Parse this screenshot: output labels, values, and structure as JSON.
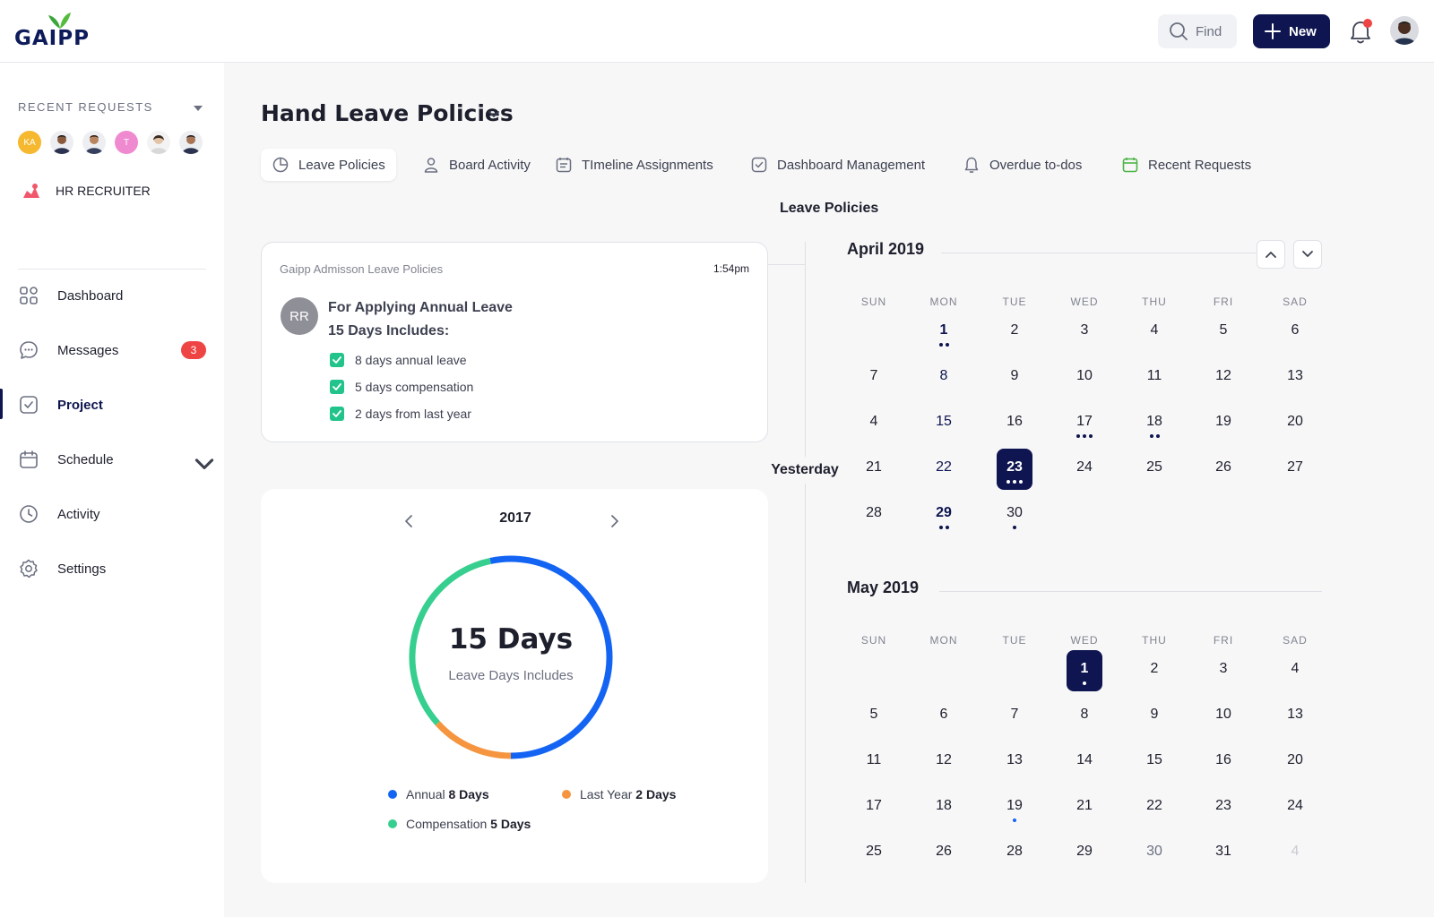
{
  "brand": {
    "name": "GAIPP"
  },
  "header": {
    "find_label": "Find",
    "new_label": "New"
  },
  "sidebar": {
    "recent_title": "RECENT REQUESTS",
    "avatars": [
      {
        "initials": "KA",
        "color": "#f5b82e"
      },
      {
        "initials": "",
        "color": "#c9a58a"
      },
      {
        "initials": "",
        "color": "#b98f73"
      },
      {
        "initials": "T",
        "color": "#f08ad0"
      },
      {
        "initials": "",
        "color": "#e6d9c9"
      },
      {
        "initials": "",
        "color": "#b08466"
      }
    ],
    "role": "HR RECRUITER",
    "nav": [
      {
        "label": "Dashboard",
        "icon": "grid-icon"
      },
      {
        "label": "Messages",
        "icon": "chat-icon",
        "badge": "3"
      },
      {
        "label": "Project",
        "icon": "check-square-icon",
        "active": true
      },
      {
        "label": "Schedule",
        "icon": "calendar-icon",
        "expandable": true
      },
      {
        "label": "Activity",
        "icon": "clock-icon"
      },
      {
        "label": "Settings",
        "icon": "gear-icon"
      }
    ]
  },
  "page": {
    "title": "Hand Leave Policies",
    "tabs": [
      {
        "label": "Leave Policies",
        "icon": "pie-icon",
        "active": true
      },
      {
        "label": "Board Activity",
        "icon": "user-icon"
      },
      {
        "label": "TImeline Assignments",
        "icon": "calendar-list-icon"
      },
      {
        "label": "Dashboard Management",
        "icon": "check-box-icon"
      },
      {
        "label": "Overdue to-dos",
        "icon": "bell-icon"
      },
      {
        "label": "Recent Requests",
        "icon": "calendar-green-icon"
      }
    ],
    "section_label": "Leave Policies"
  },
  "policy_card": {
    "source": "Gaipp Admisson Leave Policies",
    "time": "1:54pm",
    "avatar_initials": "RR",
    "heading_line1": "For Applying Annual Leave",
    "heading_line2": "15 Days Includes:",
    "items": [
      "8 days annual leave",
      "5 days compensation",
      "2 days from last year"
    ]
  },
  "timeline": {
    "marker": "Yesterday"
  },
  "donut": {
    "year": "2017",
    "value": "15 Days",
    "caption": "Leave Days Includes",
    "colors": {
      "annual": "#1464f4",
      "last_year": "#f59540",
      "compensation": "#36cf8f"
    }
  },
  "chart_data": {
    "type": "pie",
    "title": "15 Days",
    "subtitle": "Leave Days Includes",
    "categories": [
      "Annual",
      "Compensation",
      "Last Year"
    ],
    "values": [
      8,
      5,
      2
    ],
    "value_labels": [
      "8 Days",
      "5 Days",
      "2 Days"
    ],
    "colors": [
      "#1464f4",
      "#36cf8f",
      "#f59540"
    ],
    "donut": true
  },
  "calendars": [
    {
      "title": "April 2019",
      "weekdays": [
        "SUN",
        "MON",
        "TUE",
        "WED",
        "THU",
        "FRI",
        "SAD"
      ],
      "rows": [
        [
          "",
          "1",
          "2",
          "3",
          "4",
          "5",
          "6"
        ],
        [
          "7",
          "8",
          "9",
          "10",
          "11",
          "12",
          "13"
        ],
        [
          "4",
          "15",
          "16",
          "17",
          "18",
          "19",
          "20"
        ],
        [
          "21",
          "22",
          "23",
          "24",
          "25",
          "26",
          "27"
        ],
        [
          "28",
          "29",
          "30",
          "",
          "",
          "",
          ""
        ]
      ]
    },
    {
      "title": "May 2019",
      "weekdays": [
        "SUN",
        "MON",
        "TUE",
        "WED",
        "THU",
        "FRI",
        "SAD"
      ],
      "rows": [
        [
          "",
          "",
          "",
          "1",
          "2",
          "3",
          "4"
        ],
        [
          "5",
          "6",
          "7",
          "8",
          "9",
          "10",
          "13"
        ],
        [
          "11",
          "12",
          "13",
          "14",
          "15",
          "16",
          "20"
        ],
        [
          "17",
          "18",
          "19",
          "21",
          "22",
          "23",
          "24"
        ],
        [
          "25",
          "26",
          "28",
          "29",
          "30",
          "31",
          "4"
        ]
      ]
    }
  ]
}
